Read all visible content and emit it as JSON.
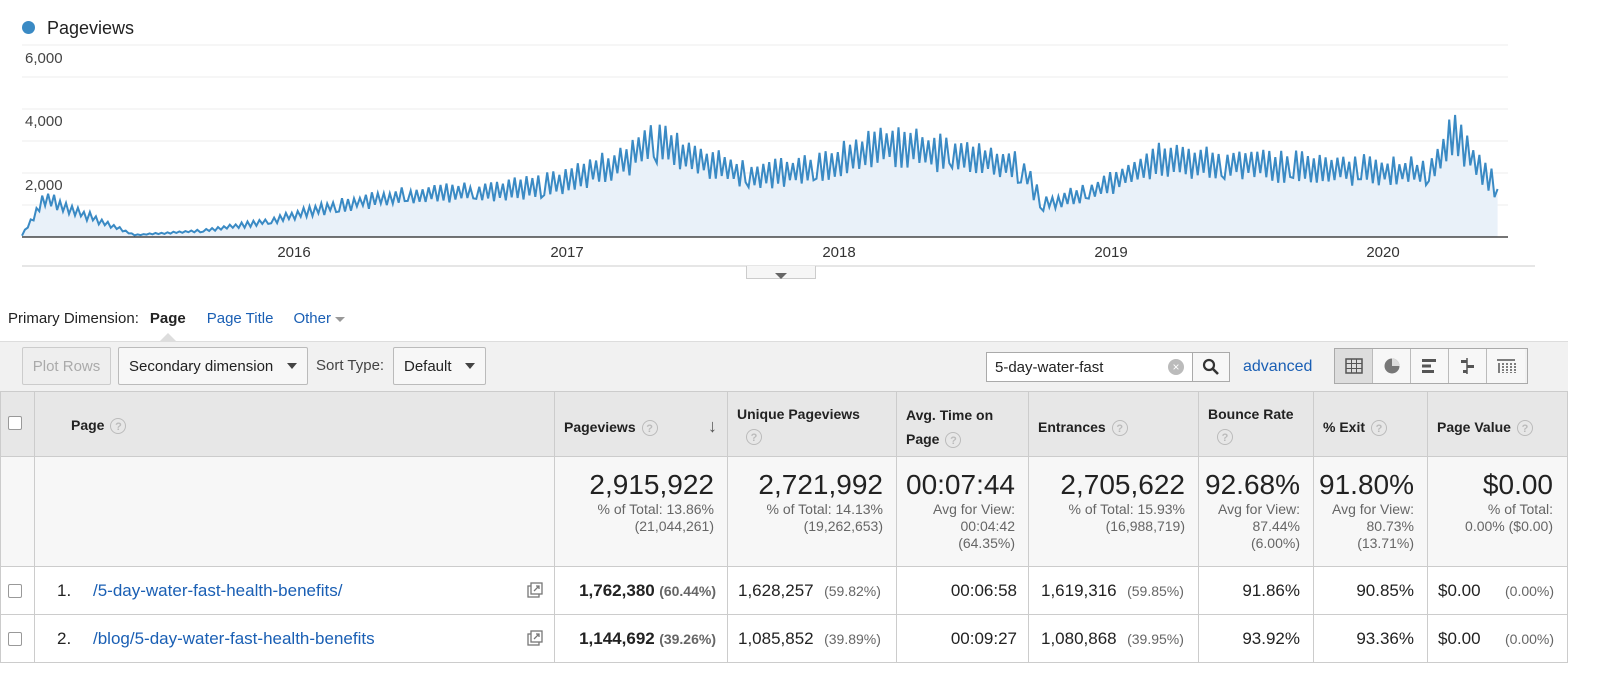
{
  "chart": {
    "legend_label": "Pageviews",
    "series_color": "#3a8ac4",
    "y_ticks": [
      "6,000",
      "4,000",
      "2,000"
    ],
    "x_ticks": [
      "2016",
      "2017",
      "2018",
      "2019",
      "2020"
    ],
    "chart_data": {
      "type": "line",
      "title": "",
      "xlabel": "",
      "ylabel": "",
      "ylim": [
        0,
        6000
      ],
      "grid": true,
      "legend": "top-left",
      "x": [
        "2015-01",
        "2015-02",
        "2015-06",
        "2015-09",
        "2015-12",
        "2016-03",
        "2016-06",
        "2016-09",
        "2016-12",
        "2017-03",
        "2017-05",
        "2017-06",
        "2017-09",
        "2017-12",
        "2018-03",
        "2018-06",
        "2018-09",
        "2018-10",
        "2018-12",
        "2019-03",
        "2019-06",
        "2019-09",
        "2019-12",
        "2020-03",
        "2020-04",
        "2020-06"
      ],
      "series": [
        {
          "name": "Pageviews",
          "values": [
            50,
            1200,
            60,
            200,
            500,
            1000,
            1300,
            1400,
            1600,
            2200,
            3000,
            2600,
            1900,
            2100,
            2900,
            2600,
            2200,
            1000,
            1400,
            2400,
            2300,
            2200,
            2100,
            2000,
            3200,
            1500
          ]
        }
      ]
    }
  },
  "primary_dimension": {
    "label": "Primary Dimension:",
    "active": "Page",
    "options": [
      "Page Title",
      "Other"
    ]
  },
  "toolbar": {
    "plot_rows": "Plot Rows",
    "secondary_dimension": "Secondary dimension",
    "sort_type_label": "Sort Type:",
    "sort_type_value": "Default",
    "search_value": "5-day-water-fast",
    "advanced": "advanced"
  },
  "view_icons": [
    "table-view-icon",
    "pie-view-icon",
    "bar-view-icon",
    "comparison-view-icon",
    "pivot-view-icon"
  ],
  "table": {
    "headers": {
      "page": "Page",
      "pageviews": "Pageviews",
      "unique_pageviews": "Unique Pageviews",
      "avg_time": "Avg. Time on Page",
      "entrances": "Entrances",
      "bounce_rate": "Bounce Rate",
      "exit": "% Exit",
      "page_value": "Page Value"
    },
    "totals": {
      "pageviews": "2,915,922",
      "pageviews_sub1": "% of Total: 13.86%",
      "pageviews_sub2": "(21,044,261)",
      "unique": "2,721,992",
      "unique_sub1": "% of Total: 14.13%",
      "unique_sub2": "(19,262,653)",
      "avg_time": "00:07:44",
      "avg_time_sub1": "Avg for View:",
      "avg_time_sub2": "00:04:42",
      "avg_time_sub3": "(64.35%)",
      "entrances": "2,705,622",
      "entrances_sub1": "% of Total: 15.93%",
      "entrances_sub2": "(16,988,719)",
      "bounce": "92.68%",
      "bounce_sub1": "Avg for View:",
      "bounce_sub2": "87.44%",
      "bounce_sub3": "(6.00%)",
      "exit": "91.80%",
      "exit_sub1": "Avg for View:",
      "exit_sub2": "80.73%",
      "exit_sub3": "(13.71%)",
      "value": "$0.00",
      "value_sub1": "% of Total:",
      "value_sub2": "0.00% ($0.00)"
    },
    "rows": [
      {
        "index": "1.",
        "page": "/5-day-water-fast-health-benefits/",
        "pageviews": "1,762,380",
        "pageviews_pct": "(60.44%)",
        "unique": "1,628,257",
        "unique_pct": "(59.82%)",
        "avg_time": "00:06:58",
        "entrances": "1,619,316",
        "entrances_pct": "(59.85%)",
        "bounce": "91.86%",
        "exit": "90.85%",
        "value": "$0.00",
        "value_pct": "(0.00%)"
      },
      {
        "index": "2.",
        "page": "/blog/5-day-water-fast-health-benefits",
        "pageviews": "1,144,692",
        "pageviews_pct": "(39.26%)",
        "unique": "1,085,852",
        "unique_pct": "(39.89%)",
        "avg_time": "00:09:27",
        "entrances": "1,080,868",
        "entrances_pct": "(39.95%)",
        "bounce": "93.92%",
        "exit": "93.36%",
        "value": "$0.00",
        "value_pct": "(0.00%)"
      }
    ]
  }
}
